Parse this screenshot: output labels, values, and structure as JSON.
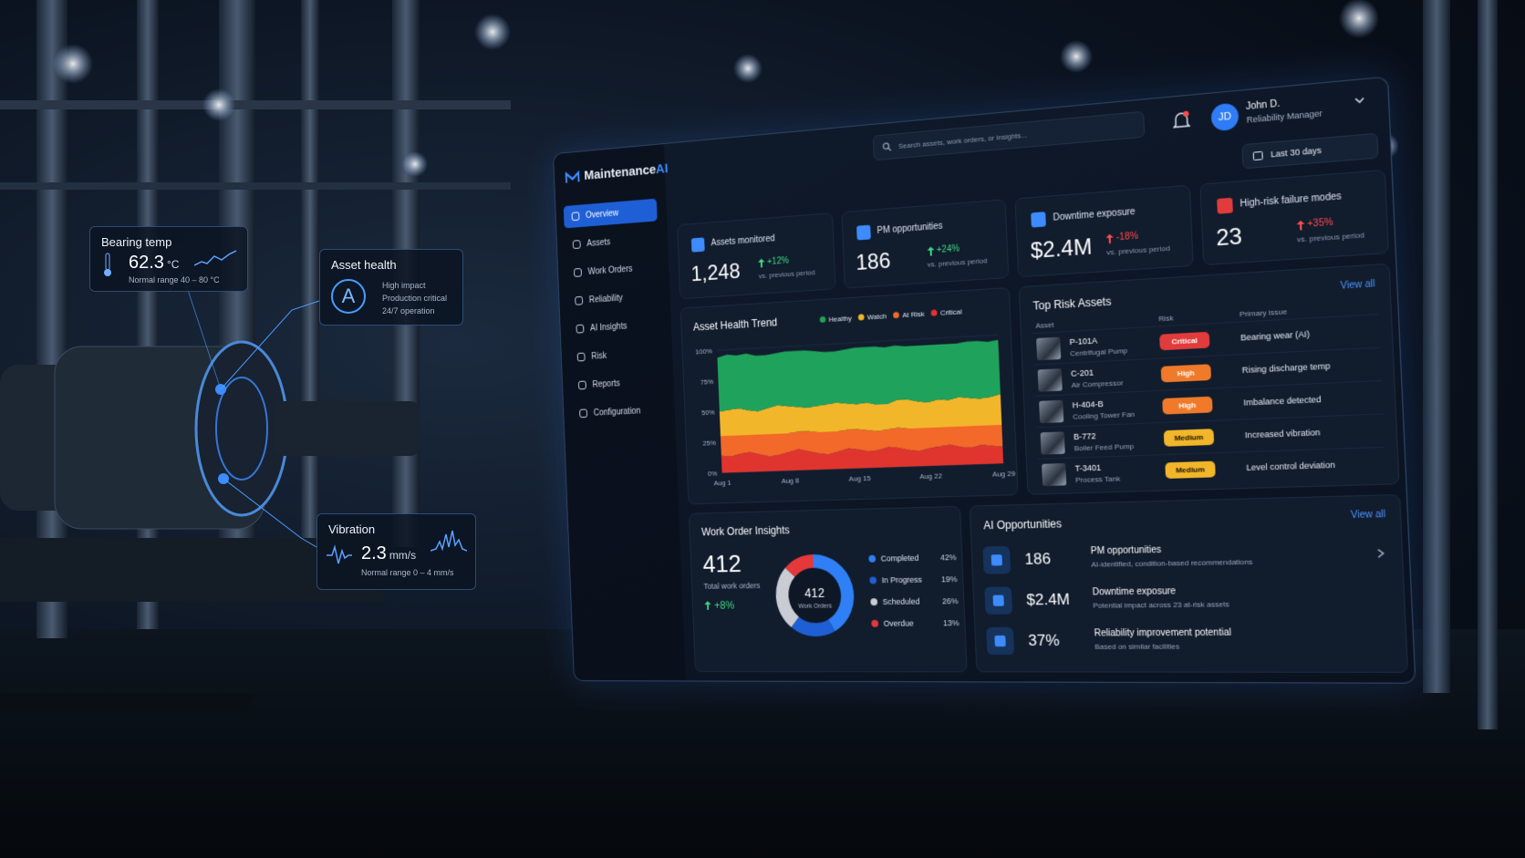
{
  "overlays": {
    "bearing": {
      "title": "Bearing temp",
      "value": "62.3",
      "unit": "°C",
      "range": "Normal range 40 – 80 °C"
    },
    "health": {
      "title": "Asset health",
      "grade": "A",
      "lines": [
        "High impact",
        "Production critical",
        "24/7 operation"
      ]
    },
    "vibration": {
      "title": "Vibration",
      "value": "2.3",
      "unit": "mm/s",
      "range": "Normal range 0 – 4 mm/s"
    }
  },
  "app": {
    "brand": "Maintenance",
    "brand_accent": "AI",
    "search": "Search assets, work orders, or insights...",
    "user": {
      "initials": "JD",
      "name": "John D.",
      "role": "Reliability Manager"
    },
    "date_range": "Last 30 days"
  },
  "nav": [
    "Overview",
    "Assets",
    "Work Orders",
    "Reliability",
    "AI Insights",
    "Risk",
    "Reports",
    "Configuration"
  ],
  "kpis": [
    {
      "label": "Assets monitored",
      "value": "1,248",
      "change": "+12%",
      "note": "vs. previous period",
      "color": "#3ddc84"
    },
    {
      "label": "PM opportunities",
      "value": "186",
      "change": "+24%",
      "note": "vs. previous period",
      "color": "#3ddc84"
    },
    {
      "label": "Downtime exposure",
      "value": "$2.4M",
      "change": "-18%",
      "note": "vs. previous period",
      "color": "#ff4d4f"
    },
    {
      "label": "High-risk failure modes",
      "value": "23",
      "change": "+35%",
      "note": "vs. previous period",
      "color": "#ff4d4f"
    }
  ],
  "chart_data": [
    {
      "type": "area",
      "stacked": true,
      "title": "Asset Health Trend",
      "categories": [
        "Aug 1",
        null,
        null,
        null,
        null,
        null,
        null,
        "Aug 8",
        null,
        null,
        null,
        null,
        null,
        null,
        "Aug 15",
        null,
        null,
        null,
        null,
        null,
        null,
        "Aug 22",
        null,
        null,
        null,
        null,
        null,
        null,
        "Aug 29"
      ],
      "series": [
        {
          "name": "Healthy",
          "color": "#1fa35c",
          "values": [
            44,
            45,
            43,
            46,
            45,
            43,
            42,
            44,
            45,
            46,
            44,
            42,
            41,
            43,
            45,
            44,
            46,
            45,
            43,
            42,
            44,
            45,
            43,
            44,
            42,
            44,
            45,
            43,
            42
          ]
        },
        {
          "name": "Watch",
          "color": "#f2b62a",
          "values": [
            20,
            21,
            22,
            20,
            19,
            21,
            23,
            22,
            20,
            19,
            21,
            22,
            23,
            21,
            20,
            22,
            21,
            20,
            22,
            23,
            21,
            20,
            22,
            21,
            23,
            22,
            21,
            22,
            24
          ]
        },
        {
          "name": "At Risk",
          "color": "#f2692a",
          "values": [
            16,
            17,
            15,
            14,
            16,
            18,
            17,
            15,
            14,
            16,
            17,
            18,
            16,
            15,
            16,
            17,
            15,
            14,
            16,
            17,
            18,
            16,
            15,
            14,
            16,
            17,
            15,
            16,
            17
          ]
        },
        {
          "name": "Critical",
          "color": "#e0342f",
          "values": [
            14,
            13,
            15,
            16,
            14,
            12,
            13,
            15,
            17,
            15,
            13,
            12,
            14,
            16,
            15,
            13,
            14,
            16,
            15,
            13,
            12,
            14,
            15,
            16,
            14,
            13,
            15,
            14,
            13
          ]
        }
      ],
      "ylim": [
        0,
        100
      ],
      "yticks": [
        {
          "value": 0,
          "label": "0%"
        },
        {
          "value": 25,
          "label": "25%"
        },
        {
          "value": 50,
          "label": "50%"
        },
        {
          "value": 75,
          "label": "75%"
        },
        {
          "value": 100,
          "label": "100%"
        }
      ],
      "grid": true,
      "legend": "top-right"
    },
    {
      "type": "pie",
      "donut": true,
      "categories": [
        "Completed",
        "In Progress",
        "Scheduled",
        "Overdue"
      ],
      "values": [
        42,
        19,
        26,
        13
      ],
      "value_labels": [
        "42%",
        "19%",
        "26%",
        "13%"
      ],
      "colors": [
        "#2f80f6",
        "#1f5fd6",
        "#c9ccd3",
        "#e5383b"
      ],
      "center_value": "412",
      "center_label": "Work Orders"
    }
  ],
  "work_orders": {
    "title": "Work Order Insights",
    "total": "412",
    "label": "Total work orders",
    "change": "+8%"
  },
  "risk": {
    "title": "Top Risk Assets",
    "link": "View all",
    "columns": [
      "Asset",
      "Risk",
      "Primary issue"
    ],
    "rows": [
      {
        "id": "P-101A",
        "type": "Centrifugal Pump",
        "risk": "Critical",
        "issue": "Bearing wear (AI)",
        "color": "#e23b3b"
      },
      {
        "id": "C-201",
        "type": "Air Compressor",
        "risk": "High",
        "issue": "Rising discharge temp",
        "color": "#f07a2a"
      },
      {
        "id": "H-404-B",
        "type": "Cooling Tower Fan",
        "risk": "High",
        "issue": "Imbalance detected",
        "color": "#f07a2a"
      },
      {
        "id": "B-772",
        "type": "Boiler Feed Pump",
        "risk": "Medium",
        "issue": "Increased vibration",
        "color": "#f2b62a"
      },
      {
        "id": "T-3401",
        "type": "Process Tank",
        "risk": "Medium",
        "issue": "Level control deviation",
        "color": "#f2b62a"
      }
    ]
  },
  "ai": {
    "title": "AI Opportunities",
    "link": "View all",
    "items": [
      {
        "value": "186",
        "title": "PM opportunities",
        "desc": "AI-identified, condition-based recommendations"
      },
      {
        "value": "$2.4M",
        "title": "Downtime exposure",
        "desc": "Potential impact across 23 at-risk assets"
      },
      {
        "value": "37%",
        "title": "Reliability improvement potential",
        "desc": "Based on similar facilities"
      }
    ]
  }
}
